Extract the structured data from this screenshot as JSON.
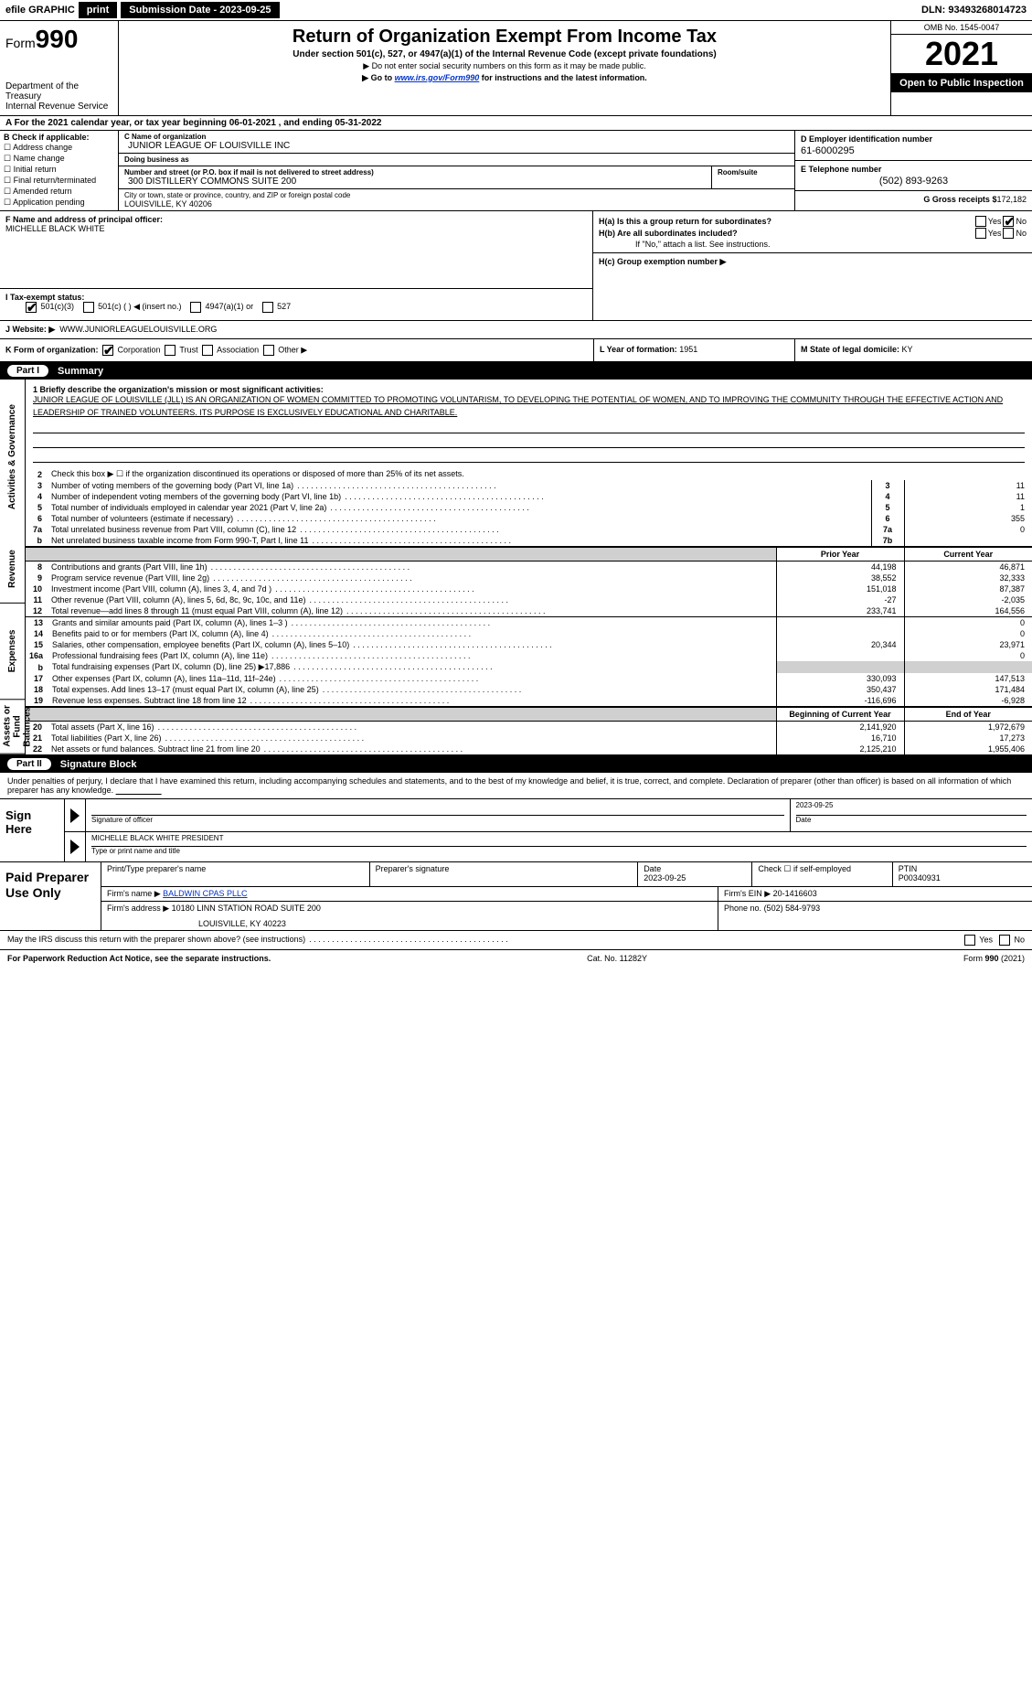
{
  "topbar": {
    "efile": "efile GRAPHIC",
    "print": "print",
    "sub_label": "Submission Date - 2023-09-25",
    "dln": "DLN: 93493268014723"
  },
  "header": {
    "form_label": "Form",
    "form_number": "990",
    "dept": "Department of the Treasury",
    "irs": "Internal Revenue Service",
    "title": "Return of Organization Exempt From Income Tax",
    "sub1": "Under section 501(c), 527, or 4947(a)(1) of the Internal Revenue Code (except private foundations)",
    "sub2": "▶ Do not enter social security numbers on this form as it may be made public.",
    "sub3_pre": "▶ Go to ",
    "sub3_link": "www.irs.gov/Form990",
    "sub3_post": " for instructions and the latest information.",
    "omb": "OMB No. 1545-0047",
    "year": "2021",
    "inspect": "Open to Public Inspection"
  },
  "rowA": {
    "text_pre": "A For the 2021 calendar year, or tax year beginning ",
    "begin": "06-01-2021",
    "mid": "    , and ending ",
    "end": "05-31-2022"
  },
  "sectionB": {
    "title": "B Check if applicable:",
    "opts": [
      "Address change",
      "Name change",
      "Initial return",
      "Final return/terminated",
      "Amended return",
      "Application pending"
    ],
    "c_label": "C Name of organization",
    "c_name": "JUNIOR LEAGUE OF LOUISVILLE INC",
    "dba_label": "Doing business as",
    "dba": "",
    "addr_label": "Number and street (or P.O. box if mail is not delivered to street address)",
    "addr": "300 DISTILLERY COMMONS SUITE 200",
    "room_label": "Room/suite",
    "city_label": "City or town, state or province, country, and ZIP or foreign postal code",
    "city": "LOUISVILLE, KY  40206",
    "d_label": "D Employer identification number",
    "d_ein": "61-6000295",
    "e_label": "E Telephone number",
    "e_phone": "(502) 893-9263",
    "g_label": "G Gross receipts $",
    "g_val": "172,182"
  },
  "sectionFH": {
    "f_label": "F Name and address of principal officer:",
    "f_name": "MICHELLE BLACK WHITE",
    "h_a": "H(a)  Is this a group return for subordinates?",
    "h_b": "H(b)  Are all subordinates included?",
    "h_b_note": "If \"No,\" attach a list. See instructions.",
    "h_c": "H(c)  Group exemption number ▶",
    "yes": "Yes",
    "no": "No"
  },
  "rowI": {
    "label": "I     Tax-exempt status:",
    "opts": [
      "501(c)(3)",
      "501(c) (   ) ◀ (insert no.)",
      "4947(a)(1) or",
      "527"
    ]
  },
  "rowJ": {
    "label": "J    Website: ▶",
    "val": "WWW.JUNIORLEAGUELOUISVILLE.ORG"
  },
  "rowK": {
    "label": "K Form of organization:",
    "opts": [
      "Corporation",
      "Trust",
      "Association",
      "Other ▶"
    ],
    "l_label": "L Year of formation:",
    "l_val": "1951",
    "m_label": "M State of legal domicile:",
    "m_val": "KY"
  },
  "part1": {
    "num": "Part I",
    "title": "Summary"
  },
  "vtabs": [
    "Activities & Governance",
    "Revenue",
    "Expenses",
    "Net Assets or Fund Balances"
  ],
  "mission": {
    "line1_label": "1  Briefly describe the organization's mission or most significant activities:",
    "text": "JUNIOR LEAGUE OF LOUISVILLE (JLL) IS AN ORGANIZATION OF WOMEN COMMITTED TO PROMOTING VOLUNTARISM, TO DEVELOPING THE POTENTIAL OF WOMEN, AND TO IMPROVING THE COMMUNITY THROUGH THE EFFECTIVE ACTION AND LEADERSHIP OF TRAINED VOLUNTEERS. ITS PURPOSE IS EXCLUSIVELY EDUCATIONAL AND CHARITABLE."
  },
  "gov_rows": [
    {
      "ln": "2",
      "desc": "Check this box ▶ ☐  if the organization discontinued its operations or disposed of more than 25% of its net assets.",
      "box": "",
      "val": ""
    },
    {
      "ln": "3",
      "desc": "Number of voting members of the governing body (Part VI, line 1a)",
      "box": "3",
      "val": "11"
    },
    {
      "ln": "4",
      "desc": "Number of independent voting members of the governing body (Part VI, line 1b)",
      "box": "4",
      "val": "11"
    },
    {
      "ln": "5",
      "desc": "Total number of individuals employed in calendar year 2021 (Part V, line 2a)",
      "box": "5",
      "val": "1"
    },
    {
      "ln": "6",
      "desc": "Total number of volunteers (estimate if necessary)",
      "box": "6",
      "val": "355"
    },
    {
      "ln": "7a",
      "desc": "Total unrelated business revenue from Part VIII, column (C), line 12",
      "box": "7a",
      "val": "0"
    },
    {
      "ln": "b",
      "desc": "Net unrelated business taxable income from Form 990-T, Part I, line 11",
      "box": "7b",
      "val": ""
    }
  ],
  "twocol_headers": {
    "prior": "Prior Year",
    "current": "Current Year"
  },
  "revenue_rows": [
    {
      "ln": "8",
      "desc": "Contributions and grants (Part VIII, line 1h)",
      "prior": "44,198",
      "current": "46,871"
    },
    {
      "ln": "9",
      "desc": "Program service revenue (Part VIII, line 2g)",
      "prior": "38,552",
      "current": "32,333"
    },
    {
      "ln": "10",
      "desc": "Investment income (Part VIII, column (A), lines 3, 4, and 7d )",
      "prior": "151,018",
      "current": "87,387"
    },
    {
      "ln": "11",
      "desc": "Other revenue (Part VIII, column (A), lines 5, 6d, 8c, 9c, 10c, and 11e)",
      "prior": "-27",
      "current": "-2,035"
    },
    {
      "ln": "12",
      "desc": "Total revenue—add lines 8 through 11 (must equal Part VIII, column (A), line 12)",
      "prior": "233,741",
      "current": "164,556"
    }
  ],
  "expense_rows": [
    {
      "ln": "13",
      "desc": "Grants and similar amounts paid (Part IX, column (A), lines 1–3 )",
      "prior": "",
      "current": "0"
    },
    {
      "ln": "14",
      "desc": "Benefits paid to or for members (Part IX, column (A), line 4)",
      "prior": "",
      "current": "0"
    },
    {
      "ln": "15",
      "desc": "Salaries, other compensation, employee benefits (Part IX, column (A), lines 5–10)",
      "prior": "20,344",
      "current": "23,971"
    },
    {
      "ln": "16a",
      "desc": "Professional fundraising fees (Part IX, column (A), line 11e)",
      "prior": "",
      "current": "0"
    },
    {
      "ln": "b",
      "desc": "Total fundraising expenses (Part IX, column (D), line 25) ▶17,886",
      "prior": "shade",
      "current": "shade"
    },
    {
      "ln": "17",
      "desc": "Other expenses (Part IX, column (A), lines 11a–11d, 11f–24e)",
      "prior": "330,093",
      "current": "147,513"
    },
    {
      "ln": "18",
      "desc": "Total expenses. Add lines 13–17 (must equal Part IX, column (A), line 25)",
      "prior": "350,437",
      "current": "171,484"
    },
    {
      "ln": "19",
      "desc": "Revenue less expenses. Subtract line 18 from line 12",
      "prior": "-116,696",
      "current": "-6,928"
    }
  ],
  "net_headers": {
    "begin": "Beginning of Current Year",
    "end": "End of Year"
  },
  "net_rows": [
    {
      "ln": "20",
      "desc": "Total assets (Part X, line 16)",
      "prior": "2,141,920",
      "current": "1,972,679"
    },
    {
      "ln": "21",
      "desc": "Total liabilities (Part X, line 26)",
      "prior": "16,710",
      "current": "17,273"
    },
    {
      "ln": "22",
      "desc": "Net assets or fund balances. Subtract line 21 from line 20",
      "prior": "2,125,210",
      "current": "1,955,406"
    }
  ],
  "part2": {
    "num": "Part II",
    "title": "Signature Block"
  },
  "sig": {
    "declaration": "Under penalties of perjury, I declare that I have examined this return, including accompanying schedules and statements, and to the best of my knowledge and belief, it is true, correct, and complete. Declaration of preparer (other than officer) is based on all information of which preparer has any knowledge.",
    "sign_here": "Sign Here",
    "sig_officer_label": "Signature of officer",
    "date_label": "Date",
    "sig_date": "2023-09-25",
    "name_title": "MICHELLE BLACK WHITE  PRESIDENT",
    "name_label": "Type or print name and title"
  },
  "paid": {
    "title": "Paid Preparer Use Only",
    "h_print": "Print/Type preparer's name",
    "h_sig": "Preparer's signature",
    "h_date": "Date",
    "date": "2023-09-25",
    "h_check": "Check ☐ if self-employed",
    "h_ptin": "PTIN",
    "ptin": "P00340931",
    "firm_name_label": "Firm's name    ▶",
    "firm_name": "BALDWIN CPAS PLLC",
    "firm_ein_label": "Firm's EIN ▶",
    "firm_ein": "20-1416603",
    "firm_addr_label": "Firm's address ▶",
    "firm_addr1": "10180 LINN STATION ROAD SUITE 200",
    "firm_addr2": "LOUISVILLE, KY  40223",
    "phone_label": "Phone no.",
    "phone": "(502) 584-9793"
  },
  "may_discuss": "May the IRS discuss this return with the preparer shown above? (see instructions)",
  "footer": {
    "left": "For Paperwork Reduction Act Notice, see the separate instructions.",
    "mid": "Cat. No. 11282Y",
    "right_pre": "Form ",
    "right_num": "990",
    "right_post": " (2021)"
  }
}
